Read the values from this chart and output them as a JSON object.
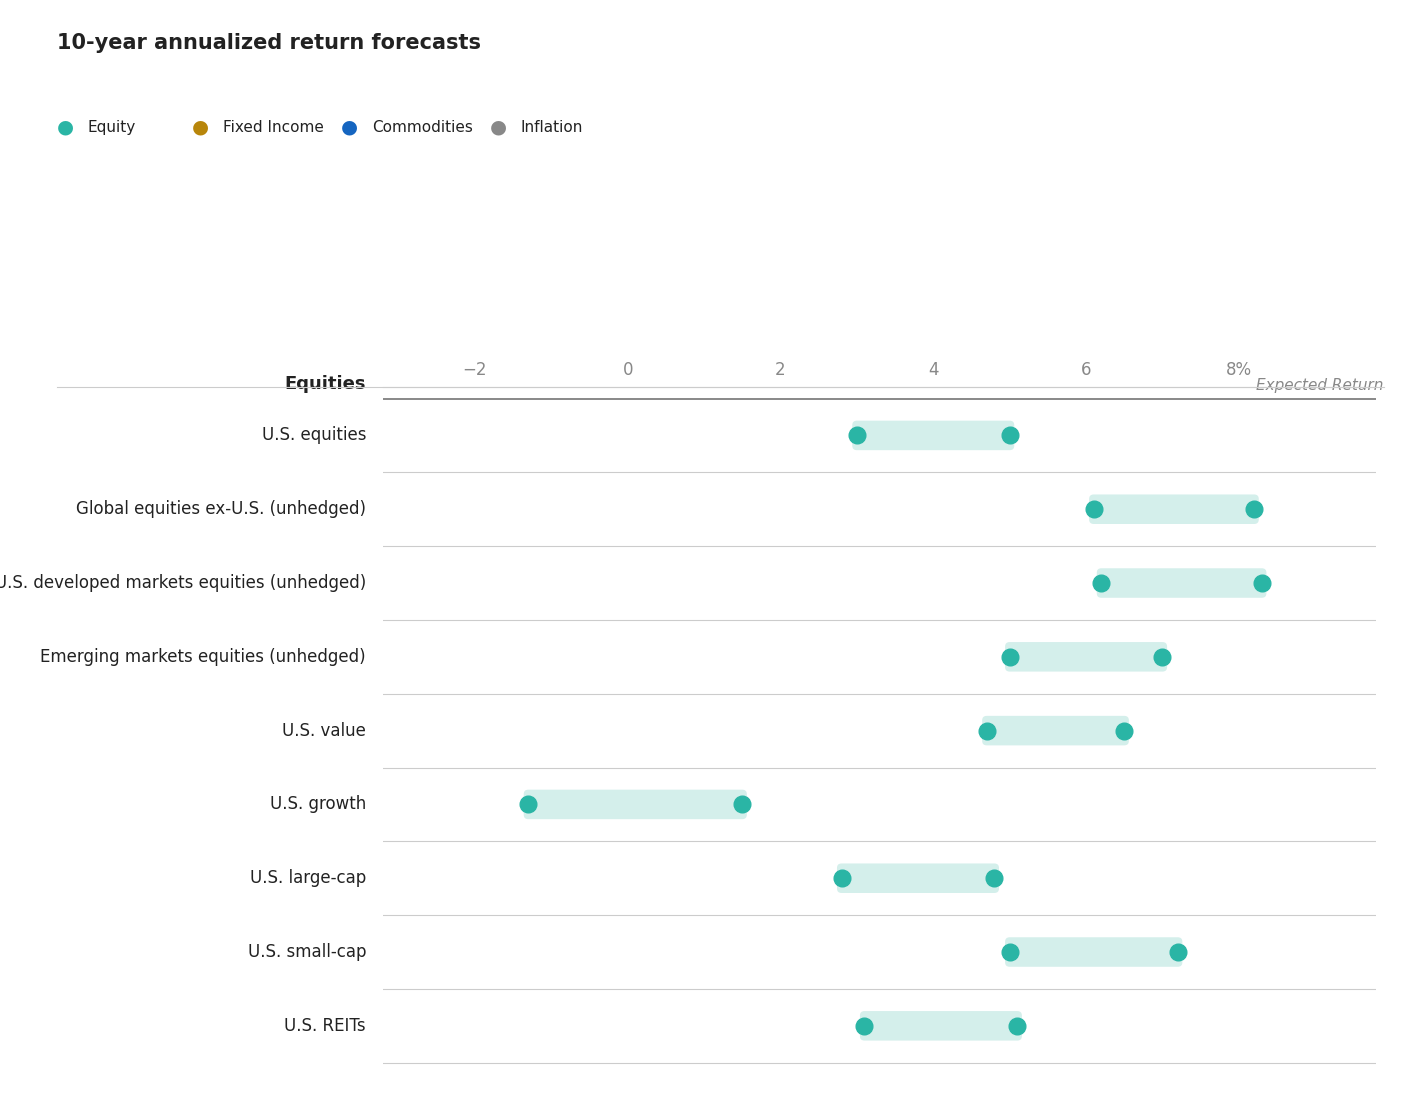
{
  "title": "10-year annualized return forecasts",
  "legend_items": [
    {
      "label": "Equity",
      "color": "#2ab5a5"
    },
    {
      "label": "Fixed Income",
      "color": "#b8860b"
    },
    {
      "label": "Commodities",
      "color": "#1565c0"
    },
    {
      "label": "Inflation",
      "color": "#888888"
    }
  ],
  "axis_label": "Expected Return",
  "section_label": "Equities",
  "x_tick_vals": [
    -2,
    0,
    2,
    4,
    6,
    8
  ],
  "x_tick_labels": [
    "−2",
    "0",
    "2",
    "4",
    "6",
    "8%"
  ],
  "x_min": -3.2,
  "x_max": 9.8,
  "categories": [
    "U.S. equities",
    "Global equities ex-U.S. (unhedged)",
    "Global ex-U.S. developed markets equities (unhedged)",
    "Emerging markets equities (unhedged)",
    "U.S. value",
    "U.S. growth",
    "U.S. large-cap",
    "U.S. small-cap",
    "U.S. REITs"
  ],
  "ranges": [
    [
      3.0,
      5.0
    ],
    [
      6.1,
      8.2
    ],
    [
      6.2,
      8.3
    ],
    [
      5.0,
      7.0
    ],
    [
      4.7,
      6.5
    ],
    [
      -1.3,
      1.5
    ],
    [
      2.8,
      4.8
    ],
    [
      5.0,
      7.2
    ],
    [
      3.1,
      5.1
    ]
  ],
  "dot_color": "#2ab5a5",
  "bar_color": "#d4efeb",
  "background_color": "#ffffff",
  "separator_color": "#cccccc",
  "thick_line_color": "#888888",
  "text_color": "#222222",
  "tick_color": "#888888",
  "header_color": "#888888",
  "title_fontsize": 15,
  "legend_fontsize": 11,
  "category_fontsize": 12,
  "xtick_fontsize": 12,
  "section_fontsize": 13,
  "expected_return_fontsize": 11
}
